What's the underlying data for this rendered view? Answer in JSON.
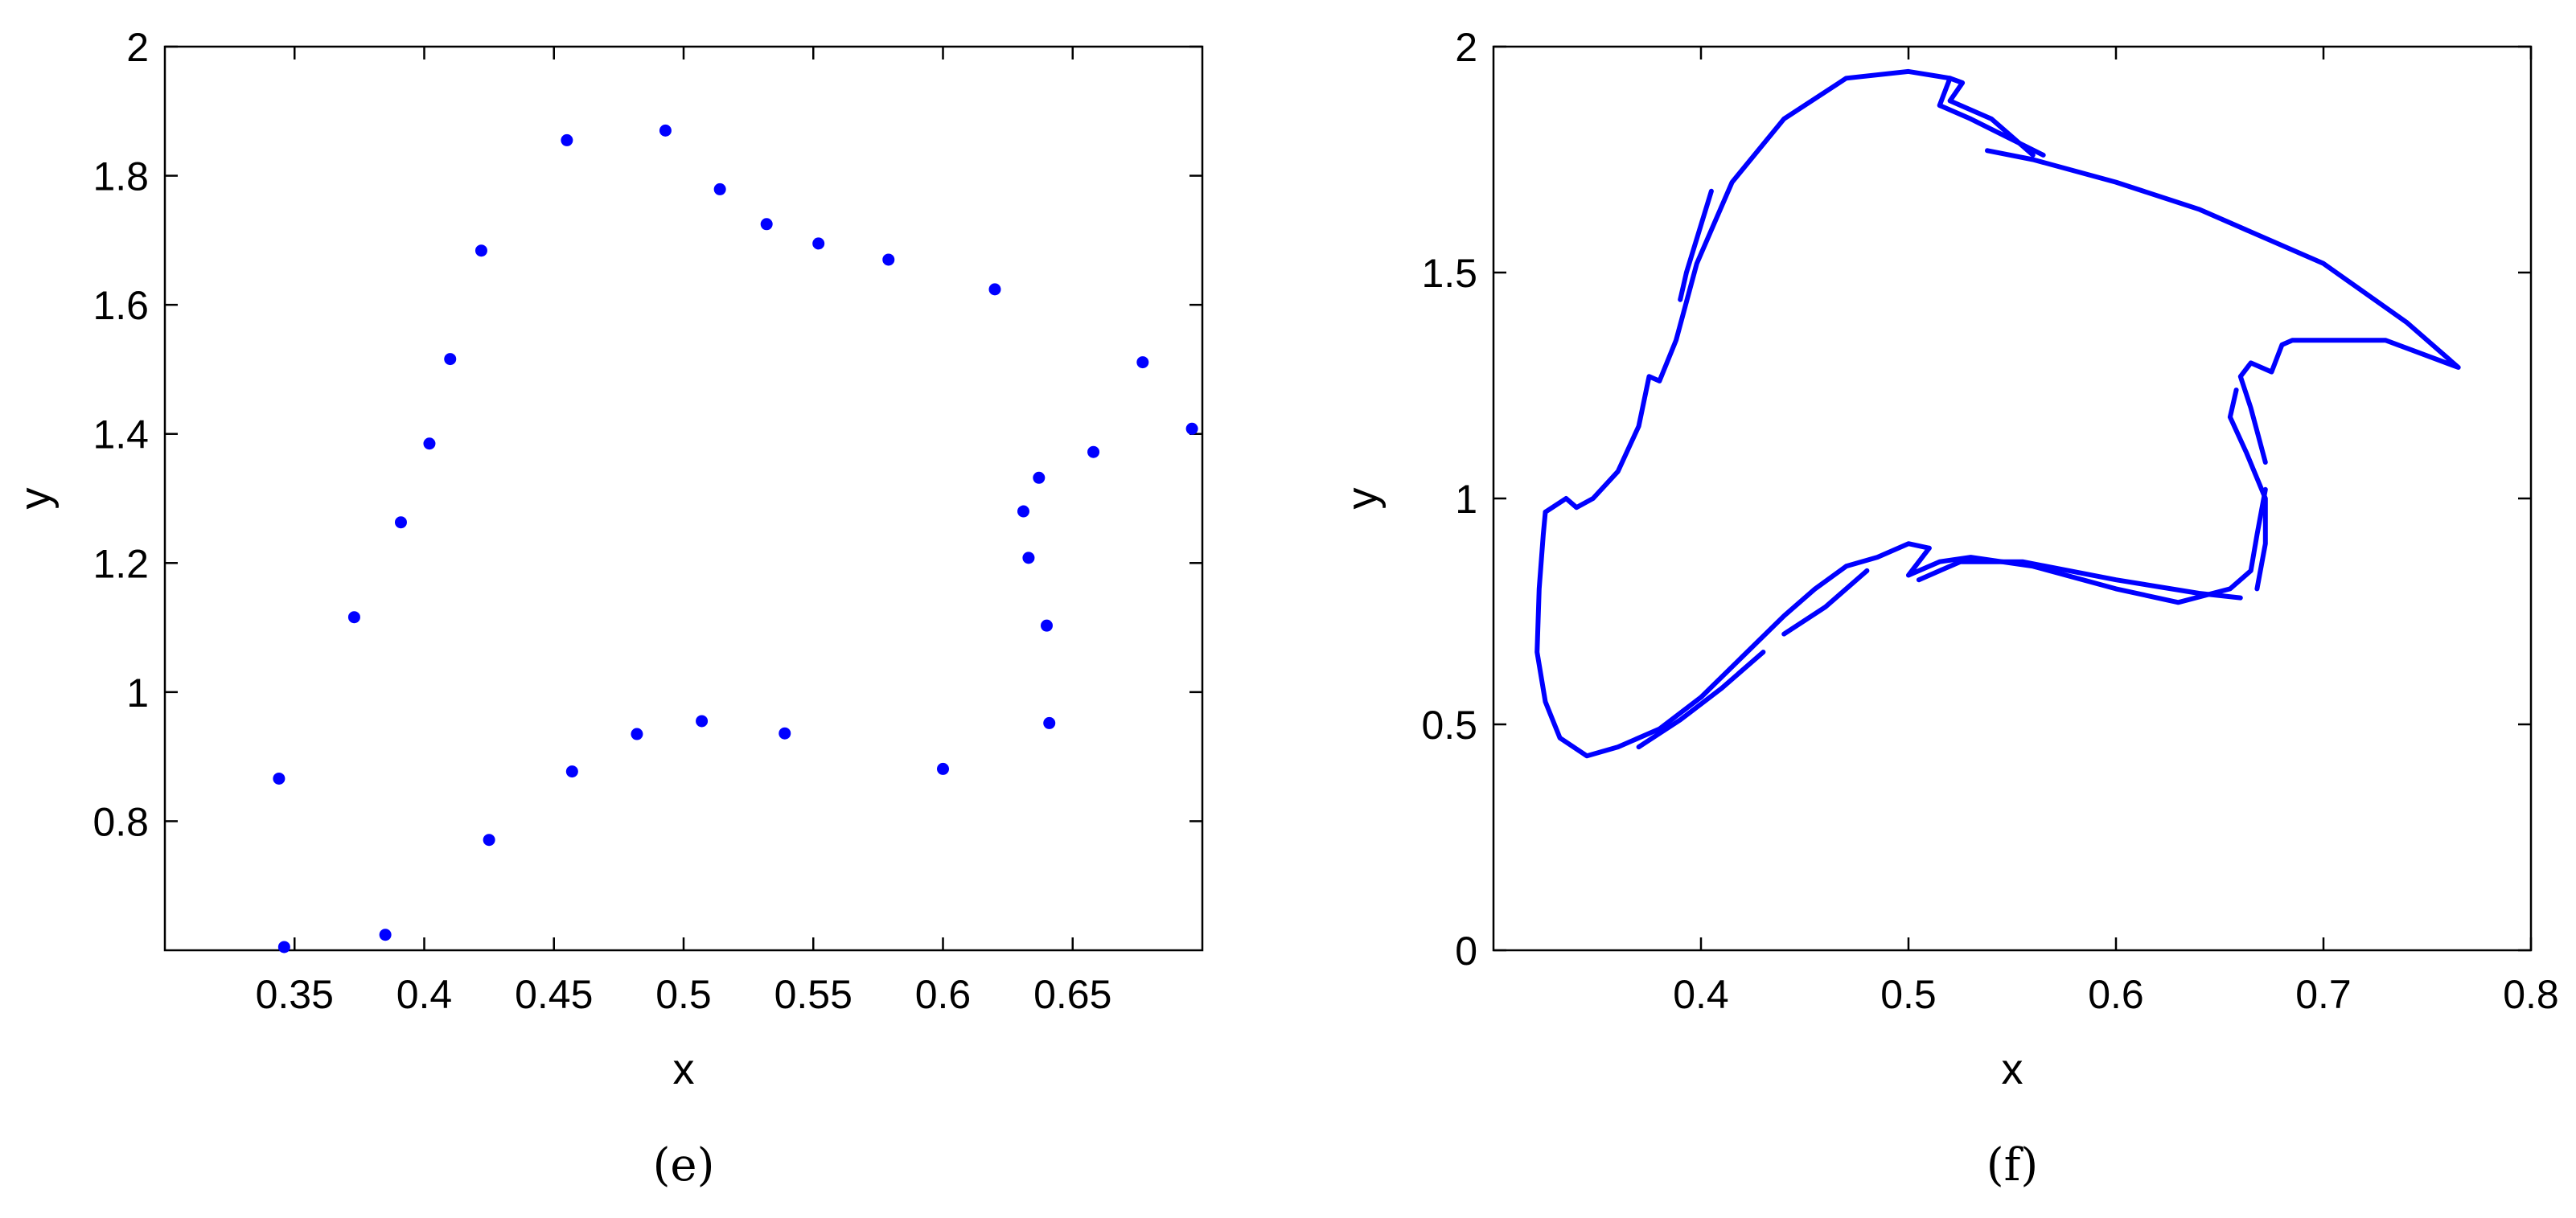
{
  "chart_data": [
    {
      "type": "scatter",
      "panel_label": "(e)",
      "xlabel": "x",
      "ylabel": "y",
      "xlim": [
        0.3,
        0.7
      ],
      "ylim": [
        0.6,
        2.0
      ],
      "xticks": [
        0.35,
        0.4,
        0.45,
        0.5,
        0.55,
        0.6,
        0.65
      ],
      "xtick_labels": [
        "0.35",
        "0.4",
        "0.45",
        "0.5",
        "0.55",
        "0.6",
        "0.65"
      ],
      "yticks": [
        0.8,
        1.0,
        1.2,
        1.4,
        1.6,
        1.8,
        2.0
      ],
      "ytick_labels": [
        "0.8",
        "1",
        "1.2",
        "1.4",
        "1.6",
        "1.8",
        "2"
      ],
      "color": "#0000ff",
      "points": [
        [
          0.344,
          0.866
        ],
        [
          0.346,
          0.605
        ],
        [
          0.373,
          1.116
        ],
        [
          0.385,
          0.624
        ],
        [
          0.391,
          1.263
        ],
        [
          0.402,
          1.385
        ],
        [
          0.41,
          1.516
        ],
        [
          0.422,
          1.684
        ],
        [
          0.425,
          0.771
        ],
        [
          0.455,
          1.855
        ],
        [
          0.457,
          0.877
        ],
        [
          0.482,
          0.935
        ],
        [
          0.493,
          1.87
        ],
        [
          0.507,
          0.955
        ],
        [
          0.514,
          1.779
        ],
        [
          0.532,
          1.725
        ],
        [
          0.539,
          0.936
        ],
        [
          0.552,
          1.695
        ],
        [
          0.579,
          1.67
        ],
        [
          0.6,
          0.881
        ],
        [
          0.62,
          1.624
        ],
        [
          0.631,
          1.28
        ],
        [
          0.633,
          1.208
        ],
        [
          0.637,
          1.332
        ],
        [
          0.64,
          1.103
        ],
        [
          0.641,
          0.952
        ],
        [
          0.658,
          1.372
        ],
        [
          0.677,
          1.511
        ],
        [
          0.696,
          1.408
        ]
      ]
    },
    {
      "type": "scatter",
      "panel_label": "(f)",
      "xlabel": "x",
      "ylabel": "y",
      "xlim": [
        0.3,
        0.8
      ],
      "ylim": [
        0.0,
        2.0
      ],
      "xticks": [
        0.4,
        0.5,
        0.6,
        0.7,
        0.8
      ],
      "xtick_labels": [
        "0.4",
        "0.5",
        "0.6",
        "0.7",
        "0.8"
      ],
      "yticks": [
        0.0,
        0.5,
        1.0,
        1.5,
        2.0
      ],
      "ytick_labels": [
        "0",
        "0.5",
        "1",
        "1.5",
        "2"
      ],
      "color": "#0000ff",
      "curves": [
        [
          [
            0.325,
            0.97
          ],
          [
            0.335,
            1.0
          ],
          [
            0.34,
            0.98
          ],
          [
            0.348,
            1.0
          ],
          [
            0.36,
            1.06
          ],
          [
            0.37,
            1.16
          ],
          [
            0.375,
            1.27
          ],
          [
            0.38,
            1.26
          ],
          [
            0.388,
            1.35
          ],
          [
            0.398,
            1.52
          ],
          [
            0.415,
            1.7
          ],
          [
            0.44,
            1.84
          ],
          [
            0.47,
            1.93
          ],
          [
            0.5,
            1.945
          ],
          [
            0.52,
            1.93
          ],
          [
            0.515,
            1.87
          ],
          [
            0.53,
            1.84
          ],
          [
            0.565,
            1.76
          ]
        ],
        [
          [
            0.52,
            1.93
          ],
          [
            0.526,
            1.92
          ],
          [
            0.52,
            1.88
          ],
          [
            0.54,
            1.84
          ],
          [
            0.56,
            1.76
          ]
        ],
        [
          [
            0.538,
            1.77
          ],
          [
            0.56,
            1.75
          ],
          [
            0.6,
            1.7
          ],
          [
            0.64,
            1.64
          ],
          [
            0.7,
            1.52
          ],
          [
            0.74,
            1.39
          ],
          [
            0.765,
            1.29
          ],
          [
            0.73,
            1.35
          ],
          [
            0.7,
            1.35
          ],
          [
            0.685,
            1.35
          ],
          [
            0.68,
            1.34
          ],
          [
            0.675,
            1.28
          ],
          [
            0.665,
            1.3
          ],
          [
            0.66,
            1.27
          ],
          [
            0.665,
            1.2
          ],
          [
            0.672,
            1.08
          ]
        ],
        [
          [
            0.658,
            1.24
          ],
          [
            0.655,
            1.18
          ],
          [
            0.663,
            1.1
          ],
          [
            0.672,
            1.0
          ],
          [
            0.672,
            0.9
          ],
          [
            0.668,
            0.8
          ]
        ],
        [
          [
            0.672,
            1.02
          ],
          [
            0.668,
            0.92
          ],
          [
            0.665,
            0.84
          ],
          [
            0.655,
            0.8
          ],
          [
            0.63,
            0.77
          ],
          [
            0.6,
            0.8
          ],
          [
            0.56,
            0.85
          ],
          [
            0.53,
            0.87
          ],
          [
            0.515,
            0.86
          ],
          [
            0.5,
            0.83
          ],
          [
            0.51,
            0.89
          ]
        ],
        [
          [
            0.51,
            0.89
          ],
          [
            0.5,
            0.9
          ],
          [
            0.485,
            0.87
          ],
          [
            0.47,
            0.85
          ],
          [
            0.455,
            0.8
          ],
          [
            0.44,
            0.74
          ],
          [
            0.42,
            0.65
          ],
          [
            0.4,
            0.56
          ],
          [
            0.38,
            0.49
          ],
          [
            0.36,
            0.45
          ],
          [
            0.345,
            0.43
          ],
          [
            0.332,
            0.47
          ],
          [
            0.325,
            0.55
          ],
          [
            0.321,
            0.66
          ],
          [
            0.322,
            0.8
          ],
          [
            0.324,
            0.92
          ],
          [
            0.325,
            0.97
          ]
        ],
        [
          [
            0.44,
            0.7
          ],
          [
            0.46,
            0.76
          ],
          [
            0.48,
            0.84
          ]
        ],
        [
          [
            0.37,
            0.45
          ],
          [
            0.39,
            0.51
          ],
          [
            0.41,
            0.58
          ],
          [
            0.43,
            0.66
          ]
        ],
        [
          [
            0.39,
            1.44
          ],
          [
            0.393,
            1.5
          ],
          [
            0.405,
            1.68
          ]
        ],
        [
          [
            0.505,
            0.82
          ],
          [
            0.525,
            0.86
          ],
          [
            0.555,
            0.86
          ],
          [
            0.6,
            0.82
          ],
          [
            0.64,
            0.79
          ],
          [
            0.66,
            0.78
          ]
        ]
      ]
    }
  ]
}
